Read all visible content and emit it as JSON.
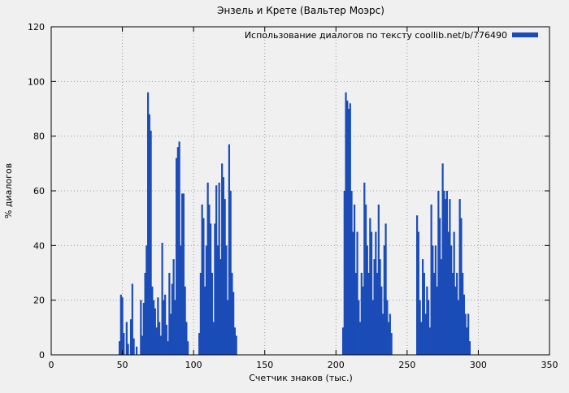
{
  "chart_data": {
    "type": "bar",
    "title": "Энзель и Крете (Вальтер Моэрс)",
    "legend": "Использование диалогов по тексту coollib.net/b/776490",
    "xlabel": "Счетчик знаков (тыс.)",
    "ylabel": "% диалогов",
    "xlim": [
      0,
      350
    ],
    "ylim": [
      0,
      120
    ],
    "xticks": [
      0,
      50,
      100,
      150,
      200,
      250,
      300,
      350
    ],
    "yticks": [
      0,
      20,
      40,
      60,
      80,
      100,
      120
    ],
    "grid": "dotted",
    "legend_position": "top-right-inside",
    "colors": {
      "series": "#1b4cb8",
      "grid": "#9a9a9a",
      "background": "#f0f0f0",
      "frame": "#000000"
    },
    "series_name": "Использование диалогов",
    "points": [
      [
        48,
        5
      ],
      [
        49,
        22
      ],
      [
        50,
        21
      ],
      [
        51,
        8
      ],
      [
        53,
        12
      ],
      [
        54,
        4
      ],
      [
        56,
        13
      ],
      [
        57,
        26
      ],
      [
        58,
        6
      ],
      [
        60,
        3
      ],
      [
        63,
        20
      ],
      [
        64,
        7
      ],
      [
        65,
        19
      ],
      [
        66,
        30
      ],
      [
        67,
        40
      ],
      [
        68,
        96
      ],
      [
        69,
        88
      ],
      [
        70,
        82
      ],
      [
        71,
        25
      ],
      [
        72,
        20
      ],
      [
        73,
        17
      ],
      [
        74,
        10
      ],
      [
        75,
        21
      ],
      [
        76,
        12
      ],
      [
        77,
        7
      ],
      [
        78,
        41
      ],
      [
        79,
        20
      ],
      [
        80,
        22
      ],
      [
        81,
        11
      ],
      [
        82,
        5
      ],
      [
        83,
        30
      ],
      [
        84,
        15
      ],
      [
        85,
        26
      ],
      [
        86,
        35
      ],
      [
        87,
        20
      ],
      [
        88,
        72
      ],
      [
        89,
        76
      ],
      [
        90,
        78
      ],
      [
        91,
        40
      ],
      [
        92,
        59
      ],
      [
        93,
        59
      ],
      [
        94,
        25
      ],
      [
        95,
        12
      ],
      [
        96,
        5
      ],
      [
        104,
        8
      ],
      [
        105,
        30
      ],
      [
        106,
        55
      ],
      [
        107,
        50
      ],
      [
        108,
        25
      ],
      [
        109,
        40
      ],
      [
        110,
        63
      ],
      [
        111,
        55
      ],
      [
        112,
        48
      ],
      [
        113,
        30
      ],
      [
        114,
        12
      ],
      [
        115,
        48
      ],
      [
        116,
        62
      ],
      [
        117,
        40
      ],
      [
        118,
        63
      ],
      [
        119,
        35
      ],
      [
        120,
        70
      ],
      [
        121,
        65
      ],
      [
        122,
        57
      ],
      [
        123,
        40
      ],
      [
        124,
        20
      ],
      [
        125,
        77
      ],
      [
        126,
        60
      ],
      [
        127,
        30
      ],
      [
        128,
        23
      ],
      [
        129,
        10
      ],
      [
        130,
        7
      ],
      [
        205,
        10
      ],
      [
        206,
        60
      ],
      [
        207,
        96
      ],
      [
        208,
        93
      ],
      [
        209,
        90
      ],
      [
        210,
        92
      ],
      [
        211,
        60
      ],
      [
        212,
        45
      ],
      [
        213,
        55
      ],
      [
        214,
        30
      ],
      [
        215,
        45
      ],
      [
        216,
        20
      ],
      [
        217,
        12
      ],
      [
        218,
        30
      ],
      [
        219,
        25
      ],
      [
        220,
        63
      ],
      [
        221,
        55
      ],
      [
        222,
        40
      ],
      [
        223,
        30
      ],
      [
        224,
        50
      ],
      [
        225,
        45
      ],
      [
        226,
        20
      ],
      [
        227,
        35
      ],
      [
        228,
        45
      ],
      [
        229,
        30
      ],
      [
        230,
        55
      ],
      [
        231,
        35
      ],
      [
        232,
        25
      ],
      [
        233,
        15
      ],
      [
        234,
        40
      ],
      [
        235,
        48
      ],
      [
        236,
        20
      ],
      [
        237,
        12
      ],
      [
        238,
        15
      ],
      [
        239,
        8
      ],
      [
        257,
        51
      ],
      [
        258,
        45
      ],
      [
        259,
        20
      ],
      [
        260,
        12
      ],
      [
        261,
        35
      ],
      [
        262,
        30
      ],
      [
        263,
        15
      ],
      [
        264,
        25
      ],
      [
        265,
        20
      ],
      [
        266,
        10
      ],
      [
        267,
        55
      ],
      [
        268,
        40
      ],
      [
        269,
        30
      ],
      [
        270,
        40
      ],
      [
        271,
        25
      ],
      [
        272,
        60
      ],
      [
        273,
        50
      ],
      [
        274,
        35
      ],
      [
        275,
        70
      ],
      [
        276,
        60
      ],
      [
        277,
        57
      ],
      [
        278,
        60
      ],
      [
        279,
        45
      ],
      [
        280,
        57
      ],
      [
        281,
        40
      ],
      [
        282,
        30
      ],
      [
        283,
        45
      ],
      [
        284,
        25
      ],
      [
        285,
        30
      ],
      [
        286,
        20
      ],
      [
        287,
        57
      ],
      [
        288,
        50
      ],
      [
        289,
        30
      ],
      [
        290,
        22
      ],
      [
        291,
        15
      ],
      [
        292,
        10
      ],
      [
        293,
        15
      ],
      [
        294,
        5
      ]
    ]
  }
}
